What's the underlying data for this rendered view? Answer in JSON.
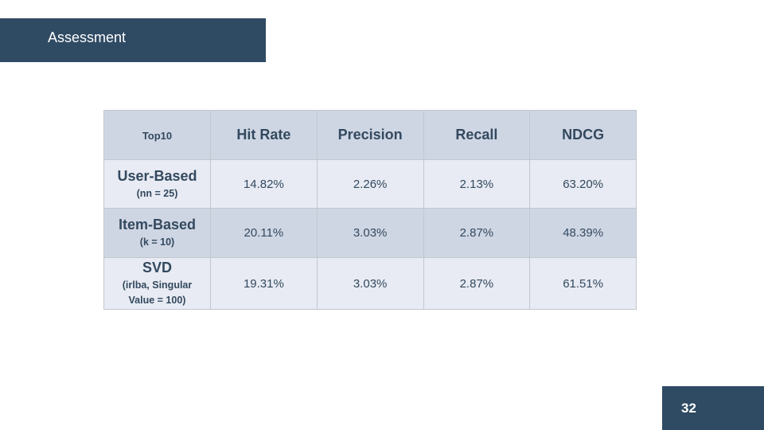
{
  "header": {
    "title": "Assessment"
  },
  "table": {
    "corner_label": "Top10",
    "columns": [
      "Hit Rate",
      "Precision",
      "Recall",
      "NDCG"
    ],
    "rows": [
      {
        "name": "User-Based",
        "param": "(nn = 25)",
        "values": [
          "14.82%",
          "2.26%",
          "2.13%",
          "63.20%"
        ]
      },
      {
        "name": "Item-Based",
        "param": "(k = 10)",
        "values": [
          "20.11%",
          "3.03%",
          "2.87%",
          "48.39%"
        ]
      },
      {
        "name": "SVD",
        "param": "(irlba, Singular Value = 100)",
        "values": [
          "19.31%",
          "3.03%",
          "2.87%",
          "61.51%"
        ]
      }
    ]
  },
  "footer": {
    "page_number": "32"
  },
  "colors": {
    "bar": "#2f4a63",
    "header_fill": "#cfd6e3",
    "row_light": "#e8ebf3",
    "text": "#33495f"
  }
}
